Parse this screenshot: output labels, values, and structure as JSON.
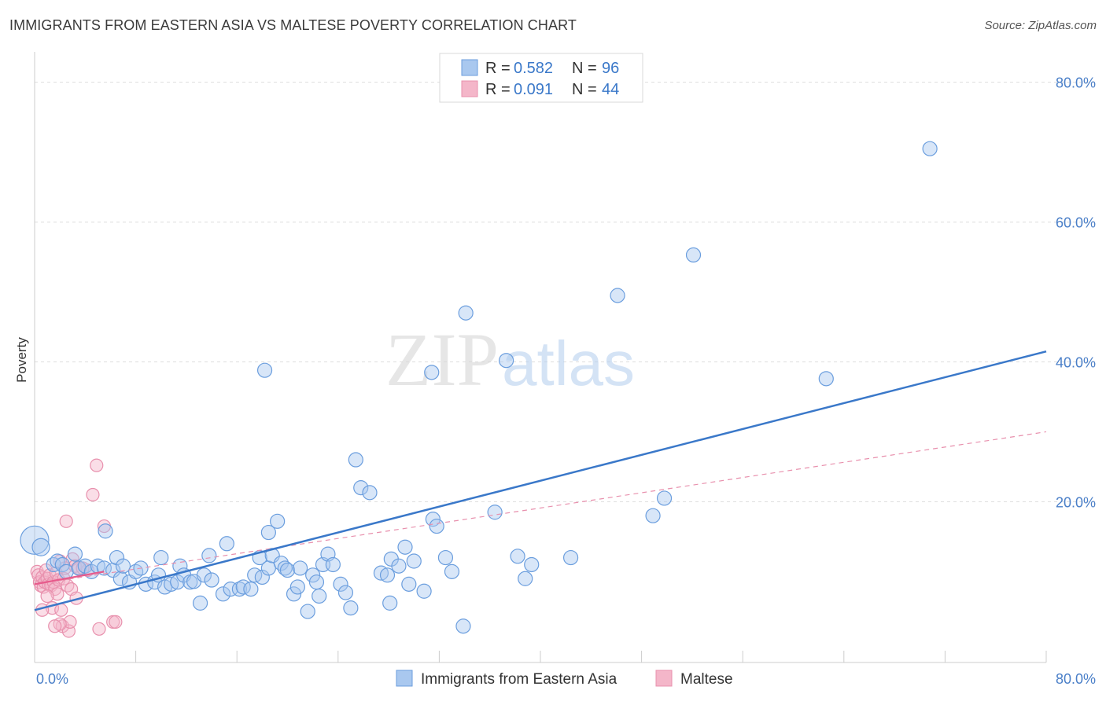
{
  "title": "IMMIGRANTS FROM EASTERN ASIA VS MALTESE POVERTY CORRELATION CHART",
  "source": "Source: ZipAtlas.com",
  "watermark": {
    "zip": "ZIP",
    "atlas": "atlas"
  },
  "colors": {
    "blue": "#3a78c9",
    "blue_fill": "#a9c8ef",
    "pink": "#e75b8c",
    "pink_fill": "#f4b6c9",
    "grid": "#dddddd",
    "tick": "#4a7fc8"
  },
  "chart_data": {
    "type": "scatter",
    "title": "IMMIGRANTS FROM EASTERN ASIA VS MALTESE POVERTY CORRELATION CHART",
    "xlabel": "",
    "ylabel": "Poverty",
    "xlim": [
      0,
      80
    ],
    "ylim": [
      -3,
      83
    ],
    "x_tick_labels": [
      "0.0%",
      "80.0%"
    ],
    "y_ticks": [
      20,
      40,
      60,
      80
    ],
    "y_tick_labels": [
      "20.0%",
      "40.0%",
      "60.0%",
      "80.0%"
    ],
    "legend": [
      {
        "name": "Immigrants from Eastern Asia",
        "r_label": "R =",
        "r": "0.582",
        "n_label": "N =",
        "n": "96"
      },
      {
        "name": "Maltese",
        "r_label": "R =",
        "r": "0.091",
        "n_label": "N =",
        "n": "44"
      }
    ],
    "series": [
      {
        "name": "Immigrants from Eastern Asia",
        "color": "#3a78c9",
        "trend": {
          "x": [
            0,
            80
          ],
          "y": [
            4.5,
            41.5
          ],
          "style": "solid"
        },
        "points": [
          [
            0,
            14.5
          ],
          [
            0.5,
            13.5
          ],
          [
            1.5,
            11
          ],
          [
            1.8,
            11.5
          ],
          [
            2.2,
            11
          ],
          [
            2.5,
            10
          ],
          [
            3.2,
            12.5
          ],
          [
            3.5,
            10.5
          ],
          [
            4,
            10.8
          ],
          [
            4.5,
            10
          ],
          [
            5,
            10.8
          ],
          [
            5.5,
            10.5
          ],
          [
            5.6,
            15.8
          ],
          [
            6.2,
            10.2
          ],
          [
            6.5,
            12
          ],
          [
            6.8,
            9
          ],
          [
            7,
            10.8
          ],
          [
            7.5,
            8.5
          ],
          [
            8,
            10
          ],
          [
            8.4,
            10.5
          ],
          [
            8.8,
            8.2
          ],
          [
            9.5,
            8.5
          ],
          [
            9.8,
            9.5
          ],
          [
            10,
            12
          ],
          [
            10.3,
            7.8
          ],
          [
            10.8,
            8.2
          ],
          [
            11.3,
            8.5
          ],
          [
            11.5,
            10.8
          ],
          [
            11.8,
            9.5
          ],
          [
            12.3,
            8.5
          ],
          [
            12.6,
            8.6
          ],
          [
            13.1,
            5.5
          ],
          [
            13.4,
            9.5
          ],
          [
            13.8,
            12.3
          ],
          [
            14,
            8.8
          ],
          [
            14.9,
            6.8
          ],
          [
            15.2,
            14
          ],
          [
            15.5,
            7.5
          ],
          [
            16.2,
            7.5
          ],
          [
            16.5,
            7.8
          ],
          [
            17.1,
            7.5
          ],
          [
            17.4,
            9.5
          ],
          [
            17.8,
            12
          ],
          [
            18,
            9.2
          ],
          [
            18.5,
            10.5
          ],
          [
            18.8,
            12.3
          ],
          [
            18.5,
            15.6
          ],
          [
            19.2,
            17.2
          ],
          [
            19.5,
            11.2
          ],
          [
            19.8,
            10.5
          ],
          [
            20,
            10.2
          ],
          [
            20.5,
            6.8
          ],
          [
            20.8,
            7.8
          ],
          [
            21,
            10.5
          ],
          [
            21.6,
            4.3
          ],
          [
            22,
            9.5
          ],
          [
            22.3,
            8.5
          ],
          [
            22.5,
            6.5
          ],
          [
            22.8,
            11
          ],
          [
            23.2,
            12.5
          ],
          [
            23.6,
            11
          ],
          [
            24.2,
            8.2
          ],
          [
            24.6,
            7
          ],
          [
            25,
            4.8
          ],
          [
            25.4,
            26
          ],
          [
            25.8,
            22
          ],
          [
            26.5,
            21.3
          ],
          [
            27.4,
            9.8
          ],
          [
            27.9,
            9.5
          ],
          [
            28.2,
            11.8
          ],
          [
            28.8,
            10.8
          ],
          [
            29.3,
            13.5
          ],
          [
            29.6,
            8.2
          ],
          [
            30,
            11.5
          ],
          [
            30.8,
            7.2
          ],
          [
            31.5,
            17.5
          ],
          [
            31.8,
            16.5
          ],
          [
            32.5,
            12
          ],
          [
            33,
            10
          ],
          [
            33.9,
            2.2
          ],
          [
            36.4,
            18.5
          ],
          [
            38.2,
            12.2
          ],
          [
            38.8,
            9
          ],
          [
            39.3,
            11
          ],
          [
            42.4,
            12
          ],
          [
            48.9,
            18
          ],
          [
            49.8,
            20.5
          ],
          [
            18.2,
            38.8
          ],
          [
            31.4,
            38.5
          ],
          [
            34.1,
            47
          ],
          [
            37.3,
            40.2
          ],
          [
            46.1,
            49.5
          ],
          [
            52.1,
            55.3
          ],
          [
            62.6,
            37.6
          ],
          [
            70.8,
            70.5
          ],
          [
            28.1,
            5.5
          ]
        ]
      },
      {
        "name": "Maltese",
        "color": "#e75b8c",
        "trend": {
          "x": [
            0,
            5.5
          ],
          "y": [
            8.2,
            10.0
          ],
          "style": "solid"
        },
        "trend_ext": {
          "x": [
            0,
            80
          ],
          "y": [
            8.2,
            30.0
          ],
          "style": "dashed"
        },
        "points": [
          [
            0.2,
            10.0
          ],
          [
            0.3,
            9.5
          ],
          [
            0.4,
            8.5
          ],
          [
            0.5,
            8.0
          ],
          [
            0.6,
            9.2
          ],
          [
            0.7,
            7.8
          ],
          [
            0.8,
            8.5
          ],
          [
            0.9,
            10.2
          ],
          [
            1.0,
            9.0
          ],
          [
            1.1,
            8.2
          ],
          [
            1.2,
            9.5
          ],
          [
            1.3,
            8.0
          ],
          [
            1.4,
            4.8
          ],
          [
            1.5,
            8.5
          ],
          [
            1.6,
            7.5
          ],
          [
            1.7,
            9.8
          ],
          [
            1.8,
            6.8
          ],
          [
            1.9,
            8.8
          ],
          [
            2.0,
            11.5
          ],
          [
            2.1,
            4.5
          ],
          [
            2.2,
            2.2
          ],
          [
            2.3,
            9.0
          ],
          [
            2.4,
            10.5
          ],
          [
            2.5,
            17.2
          ],
          [
            2.6,
            8.0
          ],
          [
            2.7,
            1.5
          ],
          [
            2.8,
            2.8
          ],
          [
            2.9,
            7.5
          ],
          [
            3.0,
            11.8
          ],
          [
            3.2,
            10.8
          ],
          [
            3.3,
            6.2
          ],
          [
            3.5,
            10.5
          ],
          [
            4.2,
            10.2
          ],
          [
            4.6,
            21
          ],
          [
            4.9,
            25.2
          ],
          [
            5.1,
            1.8
          ],
          [
            5.5,
            16.5
          ],
          [
            6.2,
            2.8
          ],
          [
            6.4,
            2.8
          ],
          [
            2.0,
            2.5
          ],
          [
            1.0,
            6.5
          ],
          [
            0.6,
            4.5
          ],
          [
            1.6,
            2.2
          ],
          [
            3.8,
            10.5
          ]
        ]
      }
    ]
  }
}
